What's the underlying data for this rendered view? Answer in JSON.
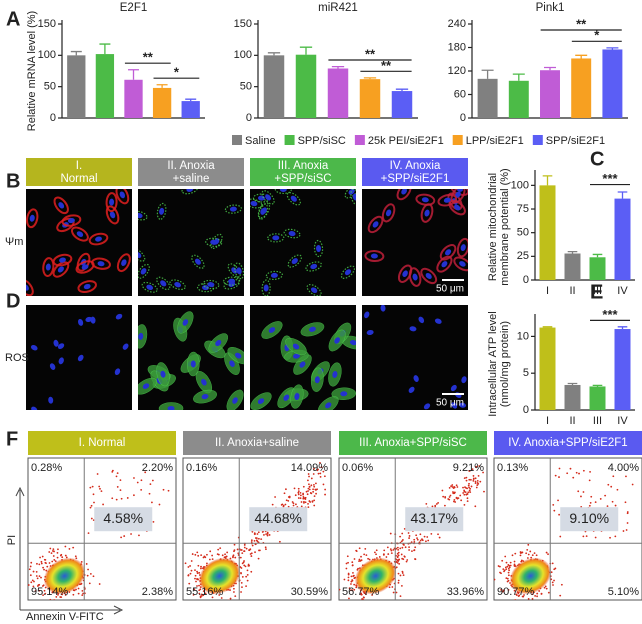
{
  "panel_labels": [
    "A",
    "B",
    "C",
    "D",
    "E",
    "F"
  ],
  "chart_data": [
    {
      "type": "bar",
      "title": "E2F1",
      "y_label": [
        "Relative mRNA level (%)"
      ],
      "values": [
        100,
        102,
        61,
        48,
        27
      ],
      "errors": [
        6,
        16,
        16,
        5,
        3
      ],
      "colors": [
        "#808080",
        "#4cbb47",
        "#c05cd6",
        "#f7a021",
        "#5b5ef5"
      ],
      "ylim": [
        0,
        150
      ],
      "yticks": [
        0,
        50,
        100,
        150
      ],
      "annotations": [
        {
          "text": "*",
          "between": [
            3,
            4
          ]
        },
        {
          "text": "**",
          "between": [
            2,
            3
          ]
        }
      ]
    },
    {
      "type": "bar",
      "title": "miR421",
      "values": [
        100,
        101,
        79,
        62,
        43
      ],
      "errors": [
        4,
        12,
        3,
        2,
        3
      ],
      "colors": [
        "#808080",
        "#4cbb47",
        "#c05cd6",
        "#f7a021",
        "#5b5ef5"
      ],
      "ylim": [
        0,
        150
      ],
      "yticks": [
        0,
        50,
        100,
        150
      ],
      "annotations": [
        {
          "text": "**",
          "between": [
            3,
            4
          ]
        },
        {
          "text": "**",
          "between": [
            2,
            4
          ]
        }
      ]
    },
    {
      "type": "bar",
      "title": "Pink1",
      "values": [
        100,
        95,
        122,
        152,
        175
      ],
      "errors": [
        22,
        17,
        7,
        8,
        4
      ],
      "colors": [
        "#808080",
        "#4cbb47",
        "#c05cd6",
        "#f7a021",
        "#5b5ef5"
      ],
      "ylim": [
        0,
        240
      ],
      "yticks": [
        0,
        60,
        120,
        180,
        240
      ],
      "annotations": [
        {
          "text": "*",
          "between": [
            3,
            4
          ]
        },
        {
          "text": "**",
          "between": [
            2,
            4
          ]
        }
      ]
    },
    {
      "type": "bar",
      "y_label": [
        "Relative mitochondrial",
        "membrane potential (%)"
      ],
      "categories": [
        "I",
        "II",
        "III",
        "IV"
      ],
      "values": [
        100,
        28,
        24,
        86
      ],
      "errors": [
        10,
        2,
        3,
        7
      ],
      "colors": [
        "#bfbf1a",
        "#808080",
        "#4cbb47",
        "#5b5ef5"
      ],
      "ylim": [
        0,
        112
      ],
      "yticks": [
        0,
        25,
        50,
        75,
        100
      ],
      "annotations": [
        {
          "text": "***",
          "between": [
            2,
            3
          ]
        }
      ]
    },
    {
      "type": "bar",
      "y_label": [
        "Intracellular ATP level",
        "(nmol/mg protein)"
      ],
      "categories": [
        "I",
        "II",
        "III",
        "IV"
      ],
      "values": [
        11.2,
        3.4,
        3.2,
        11.0
      ],
      "errors": [
        0.1,
        0.2,
        0.15,
        0.3
      ],
      "colors": [
        "#bfbf1a",
        "#808080",
        "#4cbb47",
        "#5b5ef5"
      ],
      "ylim": [
        0,
        12.5
      ],
      "yticks": [
        0,
        5,
        10
      ],
      "annotations": [
        {
          "text": "***",
          "between": [
            2,
            3
          ]
        }
      ]
    }
  ],
  "legend": [
    {
      "name": "Saline",
      "color": "#808080"
    },
    {
      "name": "SPP/siSC",
      "color": "#4cbb47"
    },
    {
      "name": "25k PEI/siE2F1",
      "color": "#c05cd6"
    },
    {
      "name": "LPP/siE2F1",
      "color": "#f7a021"
    },
    {
      "name": "SPP/siE2F1",
      "color": "#5b5ef5"
    }
  ],
  "microscopy": {
    "columns": [
      {
        "lines": [
          "I.",
          "Normal"
        ],
        "color": "#b5b51e"
      },
      {
        "lines": [
          "II. Anoxia",
          "+saline"
        ],
        "color": "#8c8c8c"
      },
      {
        "lines": [
          "III. Anoxia",
          "+SPP/siSC"
        ],
        "color": "#4cb84a"
      },
      {
        "lines": [
          "IV. Anoxia",
          "+SPP/siE2F1"
        ],
        "color": "#5a5af0"
      }
    ],
    "rows": [
      "Ψm",
      "ROS"
    ],
    "scale_bar": "50 μm"
  },
  "flow": {
    "x_label": "Annexin V-FITC",
    "y_label": "PI",
    "panels": [
      {
        "title": "I. Normal",
        "color": "#bfbf1a",
        "upper_left": "0.28%",
        "upper_right": "2.20%",
        "lower_left": "95.14%",
        "lower_right": "2.38%",
        "center": "4.58%"
      },
      {
        "title": "II. Anoxia+saline",
        "color": "#8c8c8c",
        "upper_left": "0.16%",
        "upper_right": "14.09%",
        "lower_left": "55.16%",
        "lower_right": "30.59%",
        "center": "44.68%"
      },
      {
        "title": "III. Anoxia+SPP/siSC",
        "color": "#4cb84a",
        "upper_left": "0.06%",
        "upper_right": "9.21%",
        "lower_left": "56.77%",
        "lower_right": "33.96%",
        "center": "43.17%"
      },
      {
        "title": "IV. Anoxia+SPP/siE2F1",
        "color": "#5a5af0",
        "upper_left": "0.13%",
        "upper_right": "4.00%",
        "lower_left": "90.77%",
        "lower_right": "5.10%",
        "center": "9.10%"
      }
    ]
  }
}
